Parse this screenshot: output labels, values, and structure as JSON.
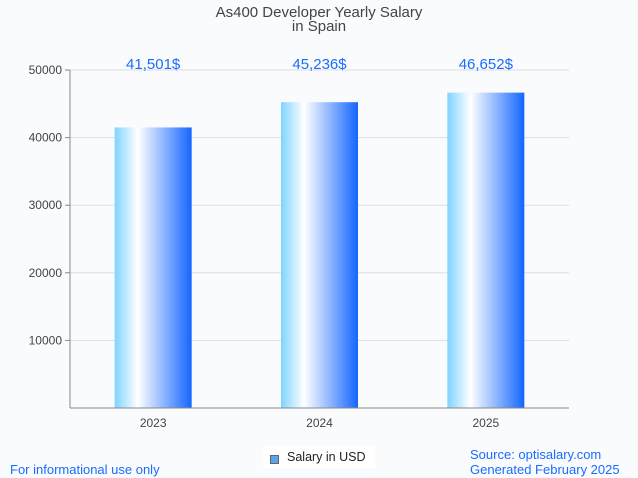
{
  "chart_data": {
    "type": "bar",
    "title": "As400 Developer Yearly Salary",
    "subtitle": "in Spain",
    "categories": [
      "2023",
      "2024",
      "2025"
    ],
    "values": [
      41501,
      45236,
      46652
    ],
    "data_labels": [
      "41,501$",
      "45,236$",
      "46,652$"
    ],
    "yticks": [
      "10000",
      "20000",
      "30000",
      "40000",
      "50000"
    ],
    "ylim": [
      0,
      50000
    ],
    "xlabel": "",
    "ylabel": "",
    "grid": true,
    "legend": {
      "label": "Salary in USD",
      "placement": "bottom-center"
    },
    "colors": {
      "bar_left": "#7fd3ff",
      "bar_mid": "#ffffff",
      "bar_right": "#1466ff",
      "label": "#1a6cff"
    }
  },
  "footer": {
    "left": "For informational use only",
    "source": "Source: optisalary.com",
    "generated": "Generated February 2025"
  }
}
